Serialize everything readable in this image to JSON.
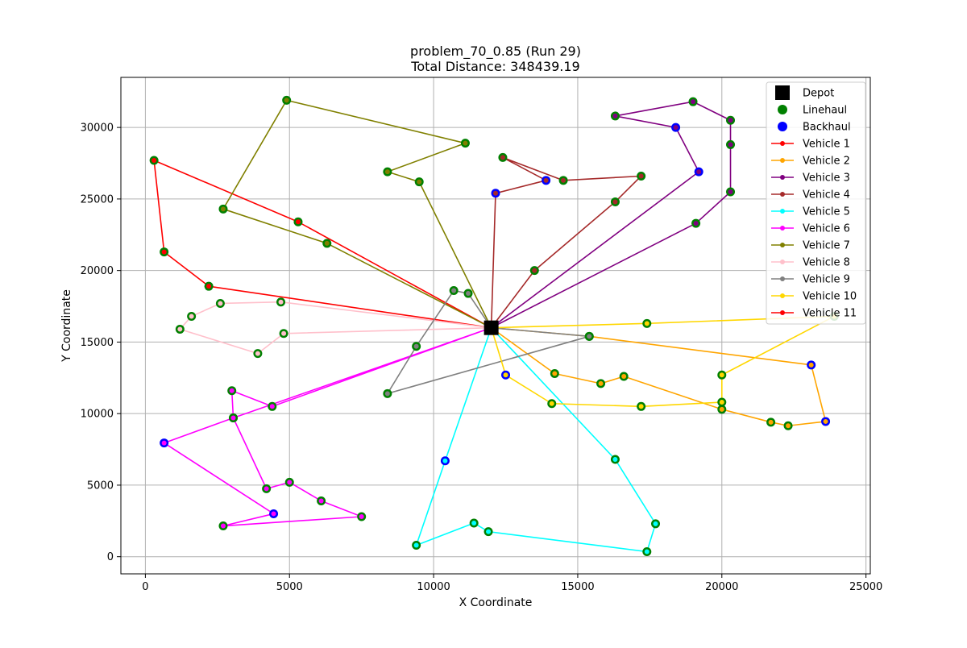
{
  "chart_data": {
    "type": "scatter",
    "title": "problem_70_0.85 (Run 29)",
    "subtitle": "Total Distance: 348439.19",
    "xlabel": "X Coordinate",
    "ylabel": "Y Coordinate",
    "xlim": [
      -850,
      25150
    ],
    "ylim": [
      -1200,
      33500
    ],
    "xticks": [
      0,
      5000,
      10000,
      15000,
      20000,
      25000
    ],
    "yticks": [
      0,
      5000,
      10000,
      15000,
      20000,
      25000,
      30000
    ],
    "grid": true,
    "legend_position": "top-right",
    "colors": {
      "depot": "#000000",
      "linehaul": "#008000",
      "backhaul": "#0000ff",
      "grid": "#b0b0b0",
      "legend_border": "#cccccc"
    },
    "depot": {
      "x": 12000,
      "y": 16000
    },
    "legend": [
      {
        "label": "Depot",
        "kind": "depot"
      },
      {
        "label": "Linehaul",
        "kind": "linehaul"
      },
      {
        "label": "Backhaul",
        "kind": "backhaul"
      },
      {
        "label": "Vehicle 1",
        "kind": "route",
        "color": "#ff0000"
      },
      {
        "label": "Vehicle 2",
        "kind": "route",
        "color": "#ffa500"
      },
      {
        "label": "Vehicle 3",
        "kind": "route",
        "color": "#800080"
      },
      {
        "label": "Vehicle 4",
        "kind": "route",
        "color": "#a52a2a"
      },
      {
        "label": "Vehicle 5",
        "kind": "route",
        "color": "#00ffff"
      },
      {
        "label": "Vehicle 6",
        "kind": "route",
        "color": "#ff00ff"
      },
      {
        "label": "Vehicle 7",
        "kind": "route",
        "color": "#808000"
      },
      {
        "label": "Vehicle 8",
        "kind": "route",
        "color": "#ffc0cb"
      },
      {
        "label": "Vehicle 9",
        "kind": "route",
        "color": "#808080"
      },
      {
        "label": "Vehicle 10",
        "kind": "route",
        "color": "#ffd700"
      },
      {
        "label": "Vehicle 11",
        "kind": "route",
        "color": "#ff0000"
      }
    ],
    "series": [
      {
        "name": "Vehicle 1",
        "color": "#ff0000",
        "points": [
          {
            "x": 2200,
            "y": 18900,
            "t": "L"
          },
          {
            "x": 650,
            "y": 21300,
            "t": "L"
          },
          {
            "x": 300,
            "y": 27700,
            "t": "L"
          },
          {
            "x": 5300,
            "y": 23400,
            "t": "L"
          }
        ]
      },
      {
        "name": "Vehicle 2",
        "color": "#ffa500",
        "points": [
          {
            "x": 14200,
            "y": 12800,
            "t": "L"
          },
          {
            "x": 15800,
            "y": 12100,
            "t": "L"
          },
          {
            "x": 16600,
            "y": 12600,
            "t": "L"
          },
          {
            "x": 20000,
            "y": 10300,
            "t": "L"
          },
          {
            "x": 21700,
            "y": 9400,
            "t": "L"
          },
          {
            "x": 22300,
            "y": 9150,
            "t": "L"
          },
          {
            "x": 23600,
            "y": 9450,
            "t": "B"
          },
          {
            "x": 23100,
            "y": 13400,
            "t": "B"
          },
          {
            "x": 15400,
            "y": 15400,
            "t": "L"
          }
        ]
      },
      {
        "name": "Vehicle 3",
        "color": "#800080",
        "points": [
          {
            "x": 19100,
            "y": 23300,
            "t": "L"
          },
          {
            "x": 20300,
            "y": 25500,
            "t": "L"
          },
          {
            "x": 20300,
            "y": 28800,
            "t": "L"
          },
          {
            "x": 20300,
            "y": 30500,
            "t": "L"
          },
          {
            "x": 19000,
            "y": 31800,
            "t": "L"
          },
          {
            "x": 16300,
            "y": 30800,
            "t": "L"
          },
          {
            "x": 18400,
            "y": 30000,
            "t": "B"
          },
          {
            "x": 19200,
            "y": 26900,
            "t": "B"
          }
        ]
      },
      {
        "name": "Vehicle 4",
        "color": "#a52a2a",
        "points": [
          {
            "x": 13500,
            "y": 20000,
            "t": "L"
          },
          {
            "x": 16300,
            "y": 24800,
            "t": "L"
          },
          {
            "x": 17200,
            "y": 26600,
            "t": "L"
          },
          {
            "x": 14500,
            "y": 26300,
            "t": "L"
          },
          {
            "x": 12400,
            "y": 27900,
            "t": "L"
          },
          {
            "x": 13900,
            "y": 26300,
            "t": "B"
          },
          {
            "x": 12150,
            "y": 25400,
            "t": "B"
          }
        ]
      },
      {
        "name": "Vehicle 5",
        "color": "#00ffff",
        "points": [
          {
            "x": 16300,
            "y": 6800,
            "t": "L"
          },
          {
            "x": 17700,
            "y": 2300,
            "t": "L"
          },
          {
            "x": 17400,
            "y": 350,
            "t": "L"
          },
          {
            "x": 11900,
            "y": 1750,
            "t": "L"
          },
          {
            "x": 11400,
            "y": 2350,
            "t": "L"
          },
          {
            "x": 9400,
            "y": 800,
            "t": "L"
          },
          {
            "x": 10400,
            "y": 6700,
            "t": "B"
          }
        ]
      },
      {
        "name": "Vehicle 6",
        "color": "#ff00ff",
        "points": [
          {
            "x": 4400,
            "y": 10500,
            "t": "L"
          },
          {
            "x": 3000,
            "y": 11600,
            "t": "L"
          },
          {
            "x": 3050,
            "y": 9700,
            "t": "L"
          },
          {
            "x": 4200,
            "y": 4750,
            "t": "L"
          },
          {
            "x": 5000,
            "y": 5200,
            "t": "L"
          },
          {
            "x": 6100,
            "y": 3900,
            "t": "L"
          },
          {
            "x": 7500,
            "y": 2800,
            "t": "L"
          },
          {
            "x": 2700,
            "y": 2150,
            "t": "L"
          },
          {
            "x": 4450,
            "y": 3000,
            "t": "B"
          },
          {
            "x": 650,
            "y": 7950,
            "t": "B"
          },
          {
            "x": 3050,
            "y": 9700,
            "t": "L"
          }
        ]
      },
      {
        "name": "Vehicle 7",
        "color": "#808000",
        "points": [
          {
            "x": 9500,
            "y": 26200,
            "t": "L"
          },
          {
            "x": 8400,
            "y": 26900,
            "t": "L"
          },
          {
            "x": 11100,
            "y": 28900,
            "t": "L"
          },
          {
            "x": 4900,
            "y": 31900,
            "t": "L"
          },
          {
            "x": 2700,
            "y": 24300,
            "t": "L"
          },
          {
            "x": 6300,
            "y": 21900,
            "t": "L"
          }
        ]
      },
      {
        "name": "Vehicle 8",
        "color": "#ffc0cb",
        "points": [
          {
            "x": 4700,
            "y": 17800,
            "t": "L"
          },
          {
            "x": 2600,
            "y": 17700,
            "t": "L"
          },
          {
            "x": 1600,
            "y": 16800,
            "t": "L"
          },
          {
            "x": 1200,
            "y": 15900,
            "t": "L"
          },
          {
            "x": 3900,
            "y": 14200,
            "t": "L"
          },
          {
            "x": 4800,
            "y": 15600,
            "t": "L"
          }
        ]
      },
      {
        "name": "Vehicle 9",
        "color": "#808080",
        "points": [
          {
            "x": 11200,
            "y": 18400,
            "t": "L"
          },
          {
            "x": 10700,
            "y": 18600,
            "t": "L"
          },
          {
            "x": 9400,
            "y": 14700,
            "t": "L"
          },
          {
            "x": 8400,
            "y": 11400,
            "t": "L"
          },
          {
            "x": 15400,
            "y": 15400,
            "t": "L"
          }
        ]
      },
      {
        "name": "Vehicle 10",
        "color": "#ffd700",
        "points": [
          {
            "x": 17400,
            "y": 16300,
            "t": "L"
          },
          {
            "x": 23900,
            "y": 16800,
            "t": "L"
          },
          {
            "x": 20000,
            "y": 12700,
            "t": "L"
          },
          {
            "x": 20000,
            "y": 10800,
            "t": "L"
          },
          {
            "x": 17200,
            "y": 10500,
            "t": "L"
          },
          {
            "x": 14100,
            "y": 10700,
            "t": "L"
          },
          {
            "x": 12500,
            "y": 12700,
            "t": "B"
          }
        ]
      },
      {
        "name": "Vehicle 11",
        "color": "#ff0000",
        "points": []
      }
    ]
  }
}
